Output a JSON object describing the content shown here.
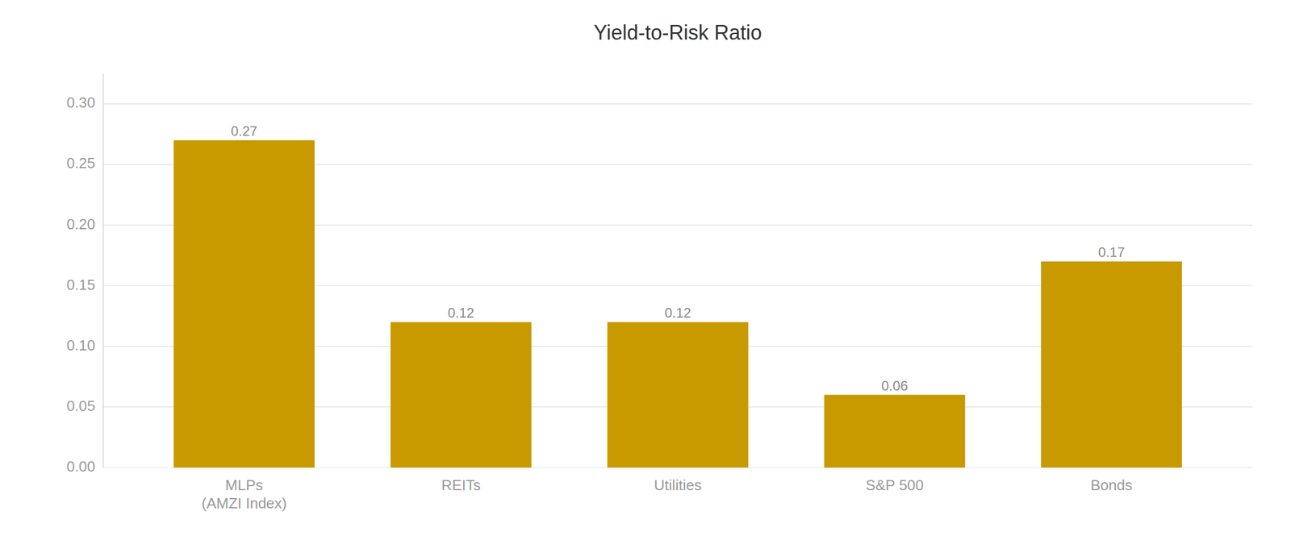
{
  "chart_data": {
    "type": "bar",
    "title": "Yield-to-Risk Ratio",
    "categories": [
      "MLPs\n(AMZI Index)",
      "REITs",
      "Utilities",
      "S&P 500",
      "Bonds"
    ],
    "values": [
      0.27,
      0.12,
      0.12,
      0.06,
      0.17
    ],
    "color": "#C89A00",
    "ylim": [
      0,
      0.325
    ],
    "yticks": [
      {
        "value": 0.0,
        "label": "0.00"
      },
      0.05,
      {
        "value": 0.1,
        "label": "0.10"
      },
      0.15,
      {
        "value": 0.2,
        "label": "0.20"
      },
      0.25,
      {
        "value": 0.3,
        "label": "0.30"
      }
    ],
    "grid": true,
    "data_labels": true
  }
}
